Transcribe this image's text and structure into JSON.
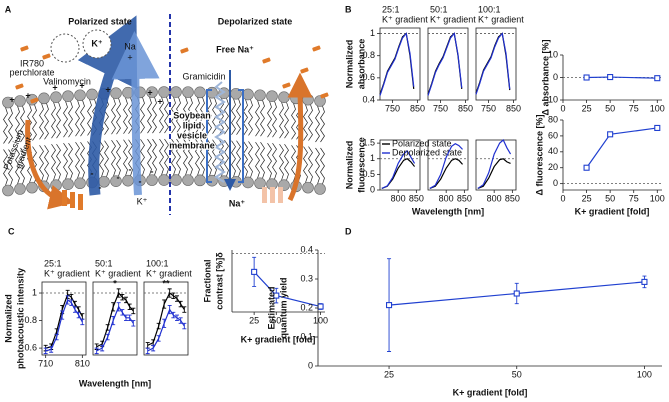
{
  "diagram": {
    "panel_label": "A",
    "polarized": "Polarized state",
    "depolarized": "Depolarized state",
    "dye": [
      "IR780",
      "perchlorate"
    ],
    "valinomycin": "Valinomycin",
    "k_ion": "K⁺",
    "na": "Na",
    "plus": "+",
    "minus": "-",
    "free_na": "Free Na⁺",
    "gramicidin": "Gramicidin",
    "membrane": [
      "Soybean",
      "lipid",
      "vesicle",
      "membrane"
    ],
    "gradient": [
      "Potassium",
      "gradient"
    ],
    "na_ion": "Na⁺"
  },
  "panel_labels": [
    "B",
    "C",
    "D"
  ],
  "chart_data": [
    {
      "type": "line",
      "title": "25:1",
      "subtitle": "K⁺ gradient",
      "ylabel": [
        "Normalized",
        "absorbance"
      ],
      "x": [
        700,
        715,
        730,
        745,
        760,
        775,
        790,
        805,
        820,
        835
      ],
      "xlim": [
        700,
        860
      ],
      "xticks": [
        750,
        850
      ],
      "ylim": [
        0.4,
        1.05
      ],
      "yticks": [
        0.4,
        0.6,
        0.8,
        1
      ],
      "hline": 1,
      "series": [
        {
          "color": "#000000",
          "values": [
            0.45,
            0.55,
            0.66,
            0.72,
            0.78,
            0.88,
            0.97,
            1.0,
            0.8,
            0.5
          ]
        },
        {
          "color": "#2030d0",
          "values": [
            0.44,
            0.54,
            0.65,
            0.71,
            0.77,
            0.87,
            0.96,
            1.0,
            0.82,
            0.52
          ]
        }
      ]
    },
    {
      "type": "line",
      "title": "50:1",
      "subtitle": "K⁺ gradient",
      "x": [
        700,
        715,
        730,
        745,
        760,
        775,
        790,
        805,
        820,
        835
      ],
      "xlim": [
        700,
        860
      ],
      "xticks": [
        750,
        850
      ],
      "ylim": [
        0.4,
        1.05
      ],
      "hline": 1,
      "series": [
        {
          "color": "#000000",
          "values": [
            0.45,
            0.55,
            0.66,
            0.73,
            0.79,
            0.88,
            0.97,
            1.0,
            0.8,
            0.5
          ]
        },
        {
          "color": "#2030d0",
          "values": [
            0.44,
            0.54,
            0.65,
            0.72,
            0.78,
            0.87,
            0.96,
            1.0,
            0.81,
            0.51
          ]
        }
      ]
    },
    {
      "type": "line",
      "title": "100:1",
      "subtitle": "K⁺ gradient",
      "x": [
        700,
        715,
        730,
        745,
        760,
        775,
        790,
        805,
        820,
        835
      ],
      "xlim": [
        700,
        860
      ],
      "xticks": [
        750,
        850
      ],
      "ylim": [
        0.4,
        1.05
      ],
      "hline": 1,
      "series": [
        {
          "color": "#000000",
          "values": [
            0.46,
            0.56,
            0.67,
            0.73,
            0.79,
            0.89,
            0.97,
            1.0,
            0.8,
            0.49
          ]
        },
        {
          "color": "#2030d0",
          "values": [
            0.45,
            0.55,
            0.66,
            0.72,
            0.78,
            0.88,
            0.96,
            1.0,
            0.82,
            0.5
          ]
        }
      ]
    },
    {
      "type": "line",
      "marker": "square",
      "ylabel": [
        "Δ absorbance [%]"
      ],
      "x": [
        25,
        50,
        100
      ],
      "xlim": [
        0,
        105
      ],
      "xticks": [
        0,
        25,
        50,
        75,
        100
      ],
      "ylim": [
        -10,
        10
      ],
      "yticks": [
        -10,
        0,
        10
      ],
      "hline": 0,
      "series": [
        {
          "color": "#2040d0",
          "values": [
            0,
            0.2,
            -0.3
          ]
        }
      ]
    },
    {
      "type": "line",
      "legend": true,
      "ylabel": [
        "Normalized",
        "fluorescence"
      ],
      "x": [
        755,
        770,
        785,
        800,
        815,
        825,
        835,
        845
      ],
      "xlim": [
        750,
        860
      ],
      "xticks": [
        800,
        850
      ],
      "ylim": [
        0,
        1.6
      ],
      "yticks": [
        0,
        0.5,
        1,
        1.5
      ],
      "hline": 1,
      "series": [
        {
          "name": "Polarized state",
          "color": "#000000",
          "values": [
            0.05,
            0.12,
            0.35,
            0.7,
            0.95,
            1.0,
            0.9,
            0.75
          ]
        },
        {
          "name": "Depolarized state",
          "color": "#2030d0",
          "values": [
            0.05,
            0.13,
            0.4,
            0.85,
            1.15,
            1.25,
            1.05,
            0.85
          ]
        }
      ]
    },
    {
      "type": "line",
      "xlabel": "Wavelength [nm]",
      "x": [
        755,
        770,
        785,
        800,
        815,
        825,
        835,
        845
      ],
      "xlim": [
        750,
        860
      ],
      "xticks": [
        800,
        850
      ],
      "ylim": [
        0,
        1.6
      ],
      "hline": 1,
      "series": [
        {
          "color": "#000000",
          "values": [
            0.05,
            0.12,
            0.35,
            0.7,
            0.95,
            1.0,
            0.95,
            0.82
          ]
        },
        {
          "color": "#2030d0",
          "values": [
            0.05,
            0.15,
            0.5,
            1.05,
            1.4,
            1.48,
            1.42,
            1.3
          ]
        }
      ]
    },
    {
      "type": "line",
      "x": [
        755,
        770,
        785,
        800,
        815,
        825,
        835,
        845
      ],
      "xlim": [
        750,
        860
      ],
      "xticks": [
        800,
        850
      ],
      "ylim": [
        0,
        1.6
      ],
      "hline": 1,
      "series": [
        {
          "color": "#000000",
          "values": [
            0.05,
            0.12,
            0.38,
            0.75,
            0.97,
            1.0,
            0.9,
            0.85
          ]
        },
        {
          "color": "#2030d0",
          "values": [
            0.05,
            0.17,
            0.55,
            1.15,
            1.5,
            1.6,
            1.35,
            1.15
          ]
        }
      ]
    },
    {
      "type": "line",
      "marker": "square",
      "ylabel": [
        "Δ fluorescence [%]"
      ],
      "xlabel": "K+ gradient [fold]",
      "x": [
        25,
        50,
        100
      ],
      "xlim": [
        0,
        105
      ],
      "xticks": [
        0,
        25,
        50,
        75,
        100
      ],
      "ylim": [
        -8,
        80
      ],
      "yticks": [
        0,
        20,
        40,
        60,
        80
      ],
      "hline": 0,
      "series": [
        {
          "color": "#2040d0",
          "values": [
            20,
            62,
            70
          ]
        }
      ]
    },
    {
      "type": "line",
      "title": "25:1",
      "subtitle": "K⁺ gradient",
      "ylabel": [
        "Normalized",
        "photoacoustic intensity"
      ],
      "x": [
        710,
        725,
        740,
        755,
        770,
        780,
        790,
        800,
        810
      ],
      "xlim": [
        700,
        820
      ],
      "xticks": [
        710,
        810
      ],
      "ylim": [
        0.55,
        1.08
      ],
      "yticks": [
        0.6,
        0.8,
        1
      ],
      "hline": 1,
      "series": [
        {
          "color": "#000000",
          "values": [
            0.6,
            0.61,
            0.72,
            0.88,
            0.99,
            0.97,
            0.92,
            0.88,
            0.83
          ],
          "errors": [
            0.02,
            0.02,
            0.02,
            0.03,
            0.03,
            0.02,
            0.02,
            0.02,
            0.02
          ]
        },
        {
          "color": "#2030d0",
          "values": [
            0.58,
            0.59,
            0.68,
            0.84,
            0.95,
            0.93,
            0.88,
            0.84,
            0.79
          ],
          "errors": [
            0.02,
            0.02,
            0.02,
            0.03,
            0.03,
            0.02,
            0.02,
            0.02,
            0.02
          ]
        }
      ]
    },
    {
      "type": "line",
      "title": "50:1",
      "subtitle": "K⁺ gradient",
      "annotation": "*",
      "xlabel": "Wavelength [nm]",
      "x": [
        710,
        725,
        740,
        755,
        770,
        780,
        790,
        800,
        810
      ],
      "xlim": [
        700,
        820
      ],
      "ylim": [
        0.55,
        1.08
      ],
      "hline": 1,
      "series": [
        {
          "color": "#000000",
          "values": [
            0.61,
            0.63,
            0.75,
            0.9,
            1.0,
            0.97,
            0.95,
            0.9,
            0.87
          ],
          "errors": [
            0.02,
            0.02,
            0.02,
            0.03,
            0.03,
            0.02,
            0.02,
            0.02,
            0.02
          ]
        },
        {
          "color": "#2030d0",
          "values": [
            0.58,
            0.6,
            0.68,
            0.8,
            0.9,
            0.86,
            0.82,
            0.82,
            0.78
          ],
          "errors": [
            0.02,
            0.02,
            0.02,
            0.03,
            0.03,
            0.02,
            0.02,
            0.02,
            0.02
          ]
        }
      ]
    },
    {
      "type": "line",
      "title": "100:1",
      "subtitle": "K⁺ gradient",
      "annotation": "**",
      "x": [
        710,
        725,
        740,
        755,
        770,
        780,
        790,
        800,
        810
      ],
      "xlim": [
        700,
        820
      ],
      "ylim": [
        0.55,
        1.08
      ],
      "hline": 1,
      "series": [
        {
          "color": "#000000",
          "values": [
            0.62,
            0.64,
            0.76,
            0.92,
            1.0,
            0.98,
            0.96,
            0.92,
            0.88
          ],
          "errors": [
            0.02,
            0.02,
            0.02,
            0.03,
            0.03,
            0.02,
            0.02,
            0.02,
            0.02
          ]
        },
        {
          "color": "#2030d0",
          "values": [
            0.58,
            0.6,
            0.67,
            0.78,
            0.88,
            0.84,
            0.82,
            0.8,
            0.76
          ],
          "errors": [
            0.02,
            0.02,
            0.02,
            0.03,
            0.03,
            0.02,
            0.02,
            0.02,
            0.02
          ]
        }
      ]
    },
    {
      "type": "line",
      "marker": "square",
      "ylabel": [
        "Fractional",
        "contrast [%]δ"
      ],
      "xlabel": "K+ gradient [fold]",
      "x": [
        25,
        50,
        100
      ],
      "xlim": [
        0,
        105
      ],
      "xticks": [
        25,
        50,
        100
      ],
      "ylim": [
        -16,
        1
      ],
      "hline": 0,
      "series": [
        {
          "color": "#2040d0",
          "values": [
            -5,
            -11.5,
            -14.5
          ],
          "errors": [
            4,
            2,
            0.8
          ]
        }
      ]
    },
    {
      "type": "line",
      "marker": "square",
      "xscale": "log",
      "ylabel": [
        "Estimated",
        "quantum yield"
      ],
      "xlabel": "K+ gradient [fold]",
      "x": [
        25,
        50,
        100
      ],
      "xlim": [
        17,
        110
      ],
      "xticks": [
        25,
        50,
        100
      ],
      "ylim": [
        0,
        0.4
      ],
      "yticks": [
        0,
        0.1,
        0.2,
        0.3,
        0.4
      ],
      "series": [
        {
          "color": "#2040d0",
          "values": [
            0.21,
            0.25,
            0.29
          ],
          "errors": [
            0.16,
            0.035,
            0.02
          ]
        }
      ]
    }
  ]
}
